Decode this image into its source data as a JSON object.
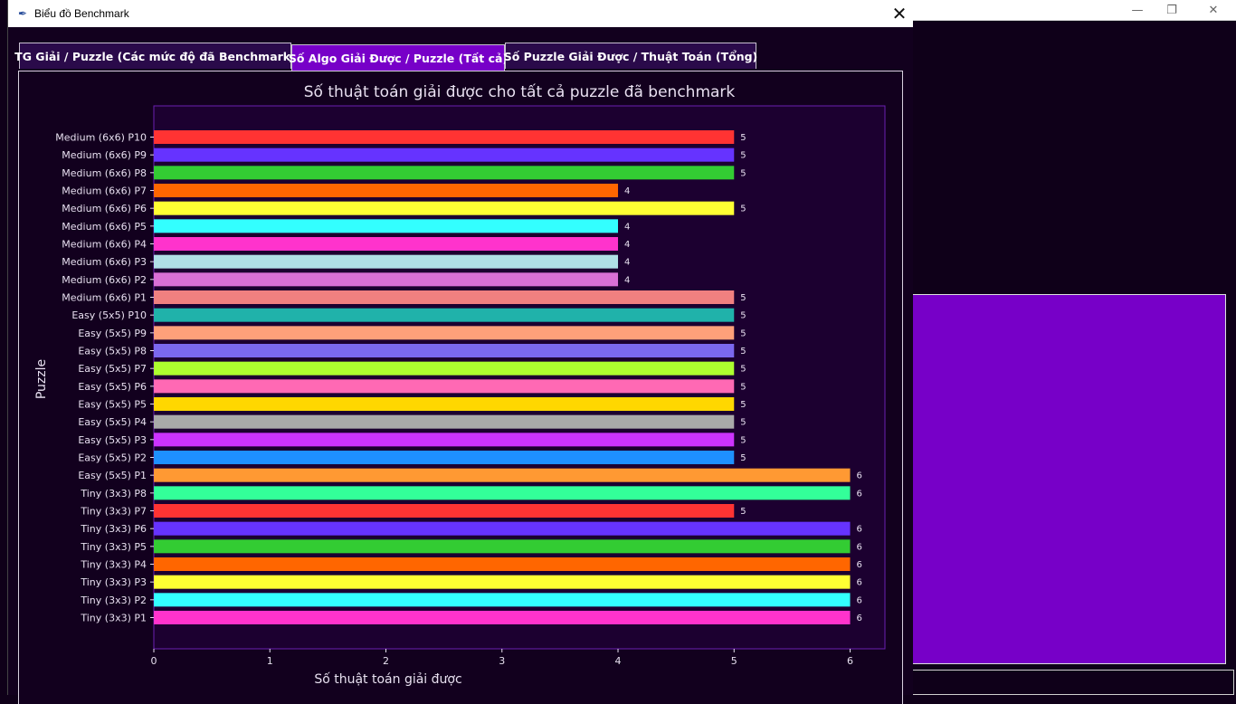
{
  "window": {
    "title": "Biểu đồ Benchmark",
    "close_icon": "close-icon",
    "app_icon": "feather-icon"
  },
  "background_window": {
    "controls": [
      "minimize-icon",
      "restore-icon",
      "close-icon"
    ],
    "accent": "#7700c8"
  },
  "tabs": [
    {
      "label": "TG Giải / Puzzle (Các mức độ đã Benchmark)",
      "active": false
    },
    {
      "label": "Số Algo Giải Được / Puzzle (Tất cả)",
      "active": true
    },
    {
      "label": "Số Puzzle Giải Được / Thuật Toán (Tổng)",
      "active": false
    }
  ],
  "colors": {
    "background": "#12001e",
    "plot_bg": "#1c0030",
    "plot_border": "#6a1fb0",
    "text": "#e8e0f0",
    "active_tab": "#7700c8"
  },
  "chart_data": {
    "type": "bar",
    "orientation": "horizontal",
    "title": "Số thuật toán giải được cho tất cả puzzle đã benchmark",
    "xlabel": "Số thuật toán giải được",
    "ylabel": "Puzzle",
    "xlim": [
      0,
      6.3
    ],
    "xticks": [
      "0",
      "1",
      "2",
      "3",
      "4",
      "5",
      "6"
    ],
    "grid": false,
    "bars": [
      {
        "label": "Medium (6x6) P10",
        "value": 5,
        "color": "#ff3333"
      },
      {
        "label": "Medium (6x6) P9",
        "value": 5,
        "color": "#6633ff"
      },
      {
        "label": "Medium (6x6) P8",
        "value": 5,
        "color": "#33cc33"
      },
      {
        "label": "Medium (6x6) P7",
        "value": 4,
        "color": "#ff6600"
      },
      {
        "label": "Medium (6x6) P6",
        "value": 5,
        "color": "#ffff33"
      },
      {
        "label": "Medium (6x6) P5",
        "value": 4,
        "color": "#33ffff"
      },
      {
        "label": "Medium (6x6) P4",
        "value": 4,
        "color": "#ff33cc"
      },
      {
        "label": "Medium (6x6) P3",
        "value": 4,
        "color": "#b0e0e6"
      },
      {
        "label": "Medium (6x6) P2",
        "value": 4,
        "color": "#da70d6"
      },
      {
        "label": "Medium (6x6) P1",
        "value": 5,
        "color": "#f08080"
      },
      {
        "label": "Easy (5x5) P10",
        "value": 5,
        "color": "#20b2aa"
      },
      {
        "label": "Easy (5x5) P9",
        "value": 5,
        "color": "#ffa07a"
      },
      {
        "label": "Easy (5x5) P8",
        "value": 5,
        "color": "#7b68ee"
      },
      {
        "label": "Easy (5x5) P7",
        "value": 5,
        "color": "#adff2f"
      },
      {
        "label": "Easy (5x5) P6",
        "value": 5,
        "color": "#ff69b4"
      },
      {
        "label": "Easy (5x5) P5",
        "value": 5,
        "color": "#ffd700"
      },
      {
        "label": "Easy (5x5) P4",
        "value": 5,
        "color": "#a9a9a9"
      },
      {
        "label": "Easy (5x5) P3",
        "value": 5,
        "color": "#cc33ff"
      },
      {
        "label": "Easy (5x5) P2",
        "value": 5,
        "color": "#1e90ff"
      },
      {
        "label": "Easy (5x5) P1",
        "value": 6,
        "color": "#ff9933"
      },
      {
        "label": "Tiny (3x3) P8",
        "value": 6,
        "color": "#33ff99"
      },
      {
        "label": "Tiny (3x3) P7",
        "value": 5,
        "color": "#ff3333"
      },
      {
        "label": "Tiny (3x3) P6",
        "value": 6,
        "color": "#6633ff"
      },
      {
        "label": "Tiny (3x3) P5",
        "value": 6,
        "color": "#33cc33"
      },
      {
        "label": "Tiny (3x3) P4",
        "value": 6,
        "color": "#ff6600"
      },
      {
        "label": "Tiny (3x3) P3",
        "value": 6,
        "color": "#ffff33"
      },
      {
        "label": "Tiny (3x3) P2",
        "value": 6,
        "color": "#33ffff"
      },
      {
        "label": "Tiny (3x3) P1",
        "value": 6,
        "color": "#ff33cc"
      }
    ]
  }
}
